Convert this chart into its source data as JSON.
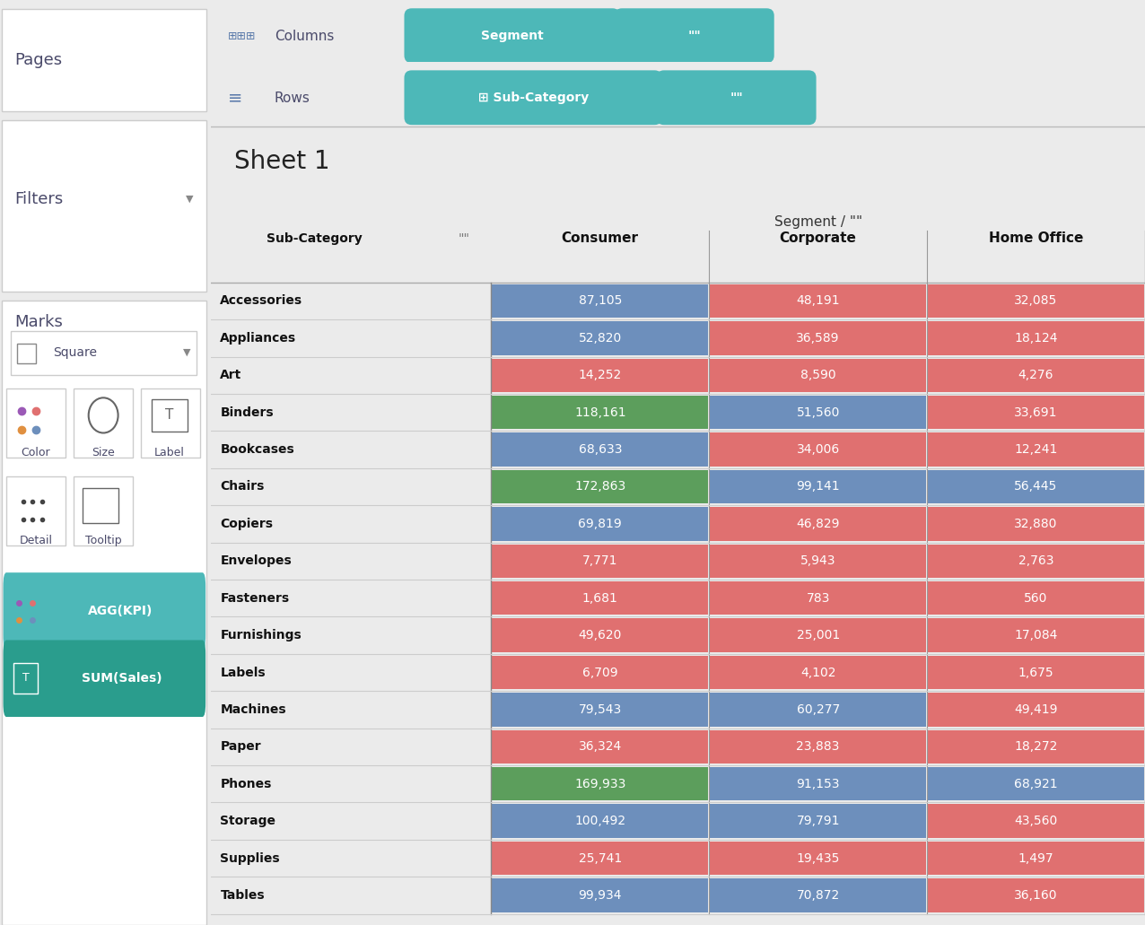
{
  "title": "Sheet 1",
  "header_segment": "Segment / \"\"",
  "columns": [
    "Consumer",
    "Corporate",
    "Home Office"
  ],
  "col_header_sub": "Sub-Category",
  "col_header_quote": "\"\"",
  "rows": [
    "Accessories",
    "Appliances",
    "Art",
    "Binders",
    "Bookcases",
    "Chairs",
    "Copiers",
    "Envelopes",
    "Fasteners",
    "Furnishings",
    "Labels",
    "Machines",
    "Paper",
    "Phones",
    "Storage",
    "Supplies",
    "Tables"
  ],
  "values": {
    "Consumer": [
      87105,
      52820,
      14252,
      118161,
      68633,
      172863,
      69819,
      7771,
      1681,
      49620,
      6709,
      79543,
      36324,
      169933,
      100492,
      25741,
      99934
    ],
    "Corporate": [
      48191,
      36589,
      8590,
      51560,
      34006,
      99141,
      46829,
      5943,
      783,
      25001,
      4102,
      60277,
      23883,
      91153,
      79791,
      19435,
      70872
    ],
    "Home Office": [
      32085,
      18124,
      4276,
      33691,
      12241,
      56445,
      32880,
      2763,
      560,
      17084,
      1675,
      49419,
      18272,
      68921,
      43560,
      1497,
      36160
    ]
  },
  "cell_colors": {
    "Consumer": [
      "blue",
      "blue",
      "red",
      "green",
      "blue",
      "green",
      "blue",
      "red",
      "red",
      "red",
      "red",
      "blue",
      "red",
      "green",
      "blue",
      "red",
      "blue"
    ],
    "Corporate": [
      "red",
      "red",
      "red",
      "blue",
      "red",
      "blue",
      "red",
      "red",
      "red",
      "red",
      "red",
      "blue",
      "red",
      "blue",
      "blue",
      "red",
      "blue"
    ],
    "Home Office": [
      "red",
      "red",
      "red",
      "red",
      "red",
      "blue",
      "red",
      "red",
      "red",
      "red",
      "red",
      "red",
      "red",
      "blue",
      "red",
      "red",
      "red"
    ]
  },
  "color_blue": "#6d8fbc",
  "color_red": "#e07070",
  "color_green": "#5c9e5c",
  "bg_color": "#ebebeb",
  "panel_bg": "#ffffff",
  "sidebar_bg": "#f5f5f5",
  "teal_color": "#4db8b8",
  "teal_dark": "#2a9d8d",
  "sidebar_label_color": "#4a4a6a",
  "grid_line_color": "#cccccc"
}
